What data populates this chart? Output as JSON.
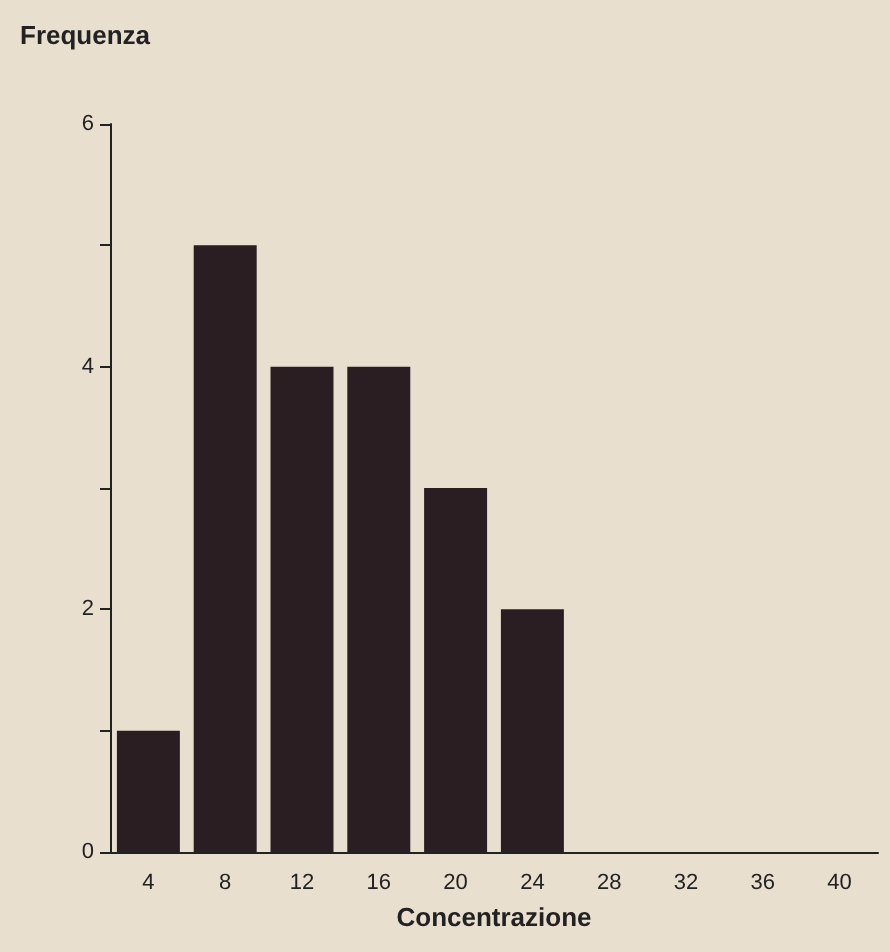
{
  "chart_data": {
    "type": "bar",
    "ylabel": "Frequenza",
    "xlabel": "Concentrazione",
    "categories": [
      "4",
      "8",
      "12",
      "16",
      "20",
      "24",
      "28",
      "32",
      "36",
      "40"
    ],
    "values": [
      1,
      5,
      4,
      4,
      3,
      2,
      0,
      0,
      0,
      0
    ],
    "color": "#2a1e22",
    "ylim": [
      0,
      6
    ],
    "yticks": [
      0,
      {
        "value": 1,
        "label": null
      },
      2,
      {
        "value": 3,
        "label": null
      },
      4,
      {
        "value": 5,
        "label": null
      },
      6
    ],
    "grid": false
  }
}
